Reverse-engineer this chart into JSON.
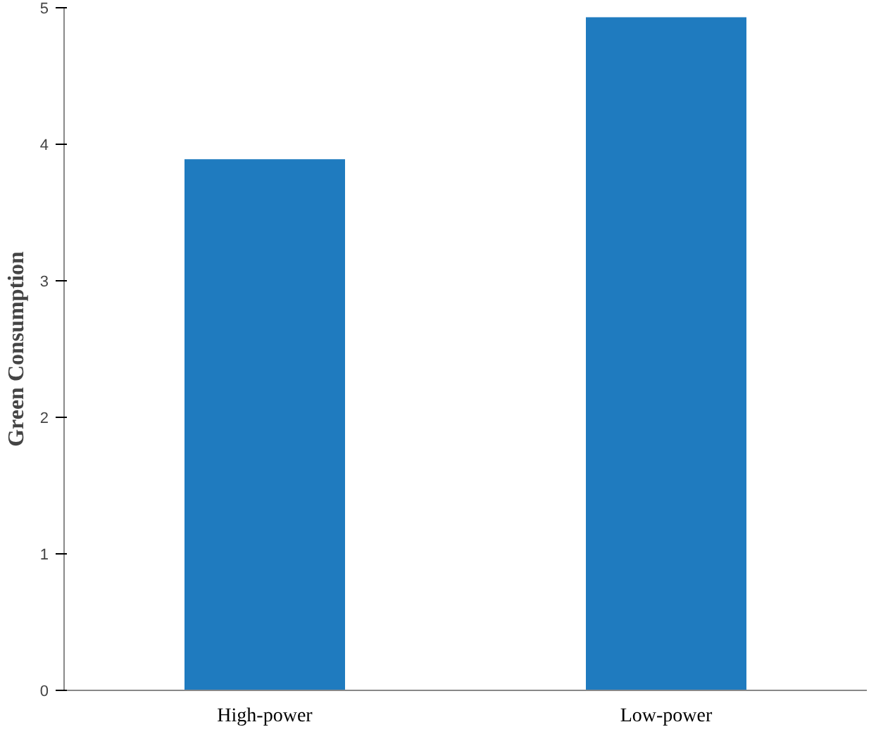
{
  "chart_data": {
    "type": "bar",
    "ylabel": "Green Consumption",
    "categories": [
      "High-power",
      "Low-power"
    ],
    "values": [
      3.89,
      4.93
    ],
    "color": "#1f7bbf",
    "ylim": [
      0,
      5
    ],
    "yticks": [
      0,
      1,
      2,
      3,
      4,
      5
    ],
    "grid": false
  }
}
